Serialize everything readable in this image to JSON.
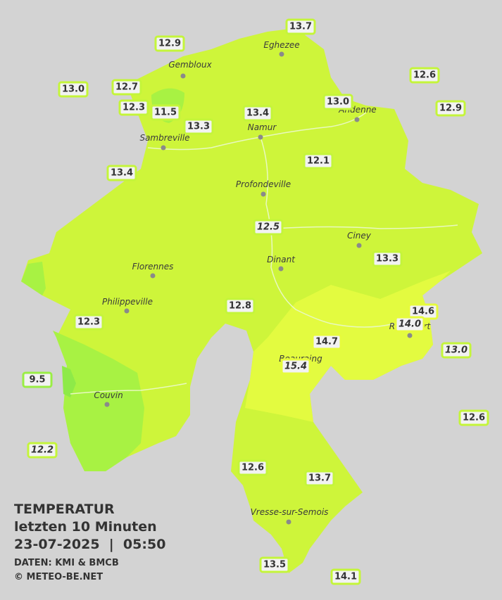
{
  "legend": {
    "title": "TEMPERATUR",
    "period": "letzten 10 Minuten",
    "datetime": "23-07-2025  |  05:50",
    "source": "DATEN: KMI & BMCB",
    "copyright": "© METEO-BE.NET"
  },
  "cities": [
    "Eghezee",
    "Gembloux",
    "Andenne",
    "Namur",
    "Sambreville",
    "Profondeville",
    "Ciney",
    "Florennes",
    "Dinant",
    "Philippeville",
    "Beauraing",
    "Rochefort",
    "Couvin",
    "Vresse-sur-Semois"
  ],
  "stations": [
    {
      "label": "13.7",
      "italic": false
    },
    {
      "label": "12.9",
      "italic": false
    },
    {
      "label": "12.6",
      "italic": false
    },
    {
      "label": "13.0",
      "italic": false
    },
    {
      "label": "12.7",
      "italic": false
    },
    {
      "label": "13.0",
      "italic": false
    },
    {
      "label": "12.9",
      "italic": false
    },
    {
      "label": "12.3",
      "italic": false
    },
    {
      "label": "11.5",
      "italic": false
    },
    {
      "label": "13.4",
      "italic": false
    },
    {
      "label": "13.3",
      "italic": false
    },
    {
      "label": "13.4",
      "italic": false
    },
    {
      "label": "12.1",
      "italic": false
    },
    {
      "label": "12.5",
      "italic": true
    },
    {
      "label": "13.3",
      "italic": false
    },
    {
      "label": "12.8",
      "italic": false
    },
    {
      "label": "14.6",
      "italic": false
    },
    {
      "label": "14.0",
      "italic": true
    },
    {
      "label": "12.3",
      "italic": false
    },
    {
      "label": "14.7",
      "italic": false
    },
    {
      "label": "13.0",
      "italic": true
    },
    {
      "label": "15.4",
      "italic": true
    },
    {
      "label": "9.5",
      "italic": false
    },
    {
      "label": "12.6",
      "italic": false
    },
    {
      "label": "12.2",
      "italic": true
    },
    {
      "label": "12.6",
      "italic": false
    },
    {
      "label": "13.7",
      "italic": false
    },
    {
      "label": "13.5",
      "italic": false
    },
    {
      "label": "14.1",
      "italic": false
    }
  ]
}
